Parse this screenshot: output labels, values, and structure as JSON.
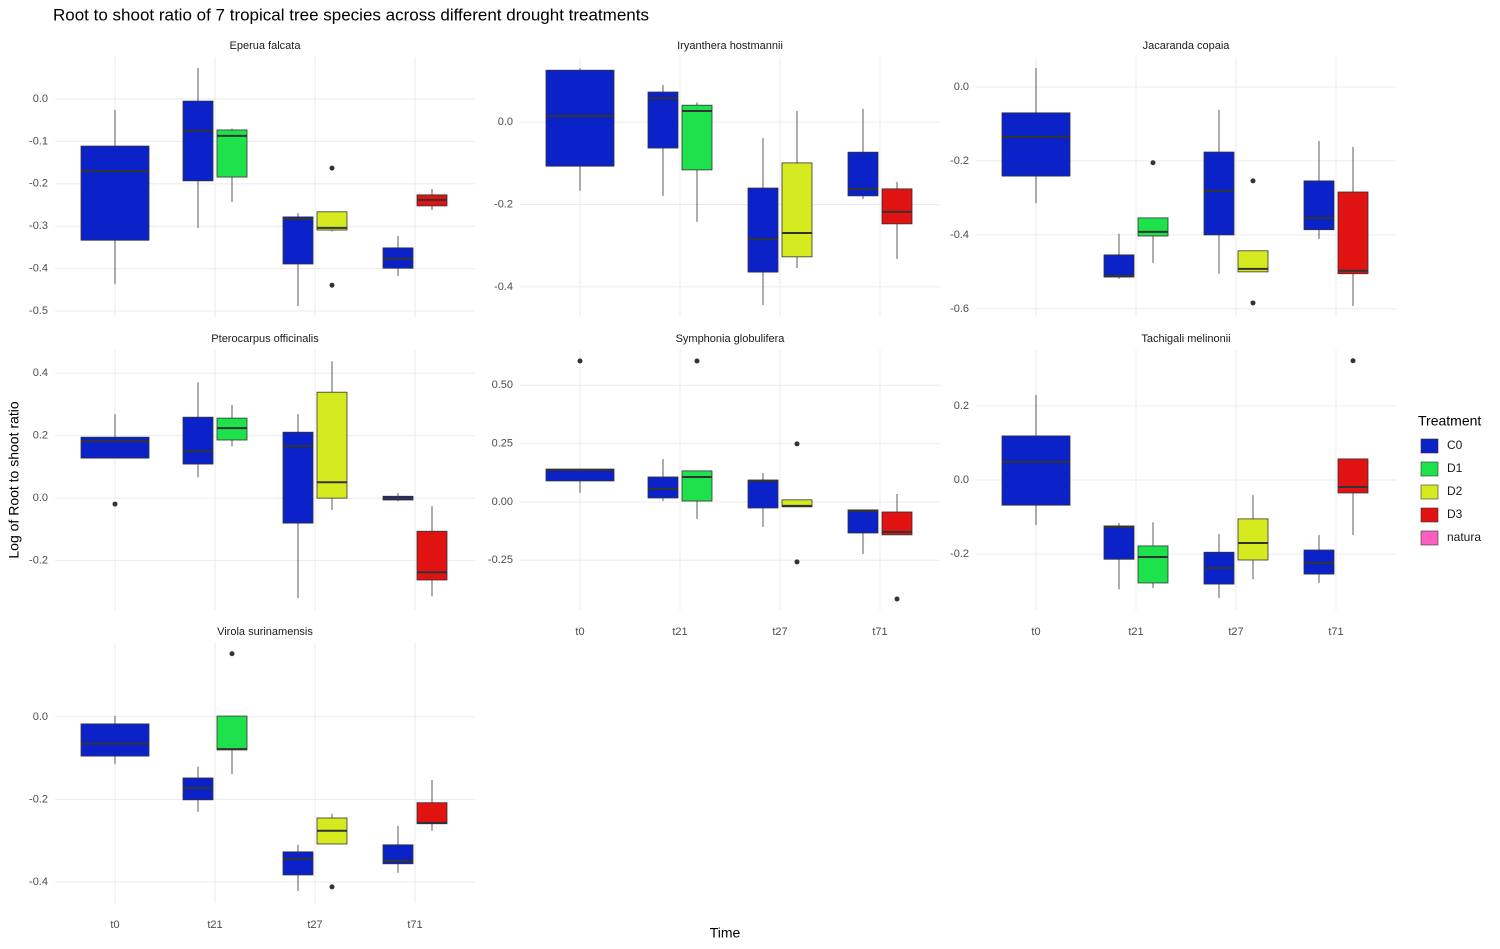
{
  "chart_data": {
    "type": "boxplot",
    "title": "Root to shoot ratio of 7 tropical tree species across different drought treatments",
    "xlabel": "Time",
    "ylabel": "Log of Root to shoot ratio",
    "legend_title": "Treatment",
    "legend_position": "right",
    "grid": true,
    "categories": [
      "t0",
      "t21",
      "t27",
      "t71"
    ],
    "series": [
      {
        "name": "C0",
        "color": "#0c22c9"
      },
      {
        "name": "D1",
        "color": "#1ee24c"
      },
      {
        "name": "D2",
        "color": "#d6eb1f"
      },
      {
        "name": "D3",
        "color": "#e01212"
      },
      {
        "name": "natura",
        "color": "#fb5fbf"
      }
    ],
    "facets": [
      {
        "title": "Eperua falcata",
        "ylim": [
          -0.514,
          0.099
        ],
        "yticks": [
          {
            "value": 0,
            "label": "0.0"
          },
          -0.1,
          -0.2,
          -0.3,
          -0.4,
          -0.5
        ],
        "boxes": [
          [
            {
              "low": -0.436,
              "q1": -0.333,
              "median": -0.17,
              "q3": -0.111,
              "high": -0.026
            },
            null,
            null,
            null,
            null
          ],
          [
            {
              "low": -0.304,
              "q1": -0.193,
              "median": -0.075,
              "q3": -0.005,
              "high": 0.073
            },
            {
              "low": -0.243,
              "q1": -0.184,
              "median": -0.087,
              "q3": -0.073,
              "high": -0.07
            },
            null,
            null,
            null
          ],
          [
            {
              "low": -0.488,
              "q1": -0.389,
              "median": -0.283,
              "q3": -0.278,
              "high": -0.269
            },
            null,
            {
              "low": -0.312,
              "q1": -0.309,
              "median": -0.304,
              "q3": -0.266,
              "high": -0.266,
              "outliers": [
                -0.163,
                -0.439
              ]
            },
            null,
            null
          ],
          [
            {
              "low": -0.417,
              "q1": -0.399,
              "median": -0.377,
              "q3": -0.351,
              "high": -0.323
            },
            null,
            null,
            {
              "low": -0.262,
              "q1": -0.252,
              "median": -0.238,
              "q3": -0.226,
              "high": -0.212
            },
            null
          ]
        ]
      },
      {
        "title": "Iryanthera hostmannii",
        "ylim": [
          -0.473,
          0.158
        ],
        "yticks": [
          {
            "value": 0,
            "label": "0.0"
          },
          -0.2,
          -0.4
        ],
        "boxes": [
          [
            {
              "low": -0.167,
              "q1": -0.107,
              "median": 0.015,
              "q3": 0.126,
              "high": 0.131
            },
            null,
            null,
            null,
            null
          ],
          [
            {
              "low": -0.179,
              "q1": -0.063,
              "median": 0.058,
              "q3": 0.073,
              "high": 0.09
            },
            {
              "low": -0.242,
              "q1": -0.116,
              "median": 0.027,
              "q3": 0.041,
              "high": 0.048
            },
            null,
            null,
            null
          ],
          [
            {
              "low": -0.444,
              "q1": -0.364,
              "median": -0.284,
              "q3": -0.16,
              "high": -0.039
            },
            null,
            {
              "low": -0.354,
              "q1": -0.327,
              "median": -0.269,
              "q3": -0.099,
              "high": 0.027
            },
            null,
            null
          ],
          [
            {
              "low": -0.187,
              "q1": -0.179,
              "median": -0.162,
              "q3": -0.073,
              "high": 0.032
            },
            null,
            null,
            {
              "low": -0.332,
              "q1": -0.247,
              "median": -0.218,
              "q3": -0.162,
              "high": -0.145
            },
            null
          ]
        ]
      },
      {
        "title": "Jacaranda copaia",
        "ylim": [
          -0.622,
          0.081
        ],
        "yticks": [
          {
            "value": 0,
            "label": "0.0"
          },
          -0.2,
          -0.4,
          -0.6
        ],
        "boxes": [
          [
            {
              "low": -0.314,
              "q1": -0.241,
              "median": -0.135,
              "q3": -0.07,
              "high": 0.051
            },
            null,
            null,
            null,
            null
          ],
          [
            {
              "low": -0.519,
              "q1": -0.514,
              "median": -0.511,
              "q3": -0.454,
              "high": -0.397
            },
            {
              "low": -0.476,
              "q1": -0.403,
              "median": -0.392,
              "q3": -0.354,
              "high": -0.354,
              "outliers": [
                -0.205
              ]
            },
            null,
            null,
            null
          ],
          [
            {
              "low": -0.505,
              "q1": -0.4,
              "median": -0.281,
              "q3": -0.176,
              "high": -0.062
            },
            null,
            {
              "low": -0.5,
              "q1": -0.5,
              "median": -0.492,
              "q3": -0.443,
              "high": -0.443,
              "outliers": [
                -0.254,
                -0.584
              ]
            },
            null,
            null
          ],
          [
            {
              "low": -0.411,
              "q1": -0.386,
              "median": -0.354,
              "q3": -0.254,
              "high": -0.146
            },
            null,
            null,
            {
              "low": -0.592,
              "q1": -0.505,
              "median": -0.497,
              "q3": -0.284,
              "high": -0.162
            },
            null
          ]
        ]
      },
      {
        "title": "Pterocarpus officinalis",
        "ylim": [
          -0.358,
          0.474
        ],
        "yticks": [
          0.4,
          0.2,
          {
            "value": 0,
            "label": "0.0"
          },
          -0.2
        ],
        "boxes": [
          [
            {
              "low": 0.128,
              "q1": 0.128,
              "median": 0.182,
              "q3": 0.195,
              "high": 0.269,
              "outliers": [
                -0.019
              ]
            },
            null,
            null,
            null,
            null
          ],
          [
            {
              "low": 0.067,
              "q1": 0.109,
              "median": 0.15,
              "q3": 0.259,
              "high": 0.371
            },
            {
              "low": 0.166,
              "q1": 0.186,
              "median": 0.224,
              "q3": 0.256,
              "high": 0.298
            },
            null,
            null,
            null
          ],
          [
            {
              "low": -0.32,
              "q1": -0.08,
              "median": 0.166,
              "q3": 0.211,
              "high": 0.269
            },
            null,
            {
              "low": -0.038,
              "q1": 0.0,
              "median": 0.051,
              "q3": 0.339,
              "high": 0.438
            },
            null,
            null
          ],
          [
            {
              "low": -0.01,
              "q1": -0.006,
              "median": 0.0,
              "q3": 0.006,
              "high": 0.016
            },
            null,
            null,
            {
              "low": -0.314,
              "q1": -0.262,
              "median": -0.237,
              "q3": -0.106,
              "high": -0.026
            },
            null
          ]
        ]
      },
      {
        "title": "Symphonia globulifera",
        "ylim": [
          -0.463,
          0.651
        ],
        "yticks": [
          {
            "value": 0.5,
            "label": "0.50"
          },
          0.25,
          {
            "value": 0,
            "label": "0.00"
          },
          -0.25
        ],
        "boxes": [
          [
            {
              "low": 0.039,
              "q1": 0.09,
              "median": 0.137,
              "q3": 0.141,
              "high": 0.141,
              "outliers": [
                0.604
              ]
            },
            null,
            null,
            null,
            null
          ],
          [
            {
              "low": 0.004,
              "q1": 0.017,
              "median": 0.056,
              "q3": 0.107,
              "high": 0.184
            },
            {
              "low": -0.073,
              "q1": 0.004,
              "median": 0.107,
              "q3": 0.133,
              "high": 0.133,
              "outliers": [
                0.604
              ]
            },
            null,
            null,
            null
          ],
          [
            {
              "low": -0.107,
              "q1": -0.026,
              "median": 0.09,
              "q3": 0.094,
              "high": 0.124
            },
            null,
            {
              "low": -0.021,
              "q1": -0.021,
              "median": -0.017,
              "q3": 0.009,
              "high": 0.009,
              "outliers": [
                0.249,
                -0.257
              ]
            },
            null,
            null
          ],
          [
            {
              "low": -0.223,
              "q1": -0.133,
              "median": -0.039,
              "q3": -0.034,
              "high": -0.034
            },
            null,
            null,
            {
              "low": -0.141,
              "q1": -0.141,
              "median": -0.129,
              "q3": -0.043,
              "high": 0.034,
              "outliers": [
                -0.416
              ]
            },
            null
          ]
        ]
      },
      {
        "title": "Tachigali melinonii",
        "ylim": [
          -0.351,
          0.351
        ],
        "yticks": [
          0.2,
          {
            "value": 0,
            "label": "0.0"
          },
          -0.2
        ],
        "boxes": [
          [
            {
              "low": -0.122,
              "q1": -0.068,
              "median": 0.049,
              "q3": 0.119,
              "high": 0.23
            },
            null,
            null,
            null,
            null
          ],
          [
            {
              "low": -0.295,
              "q1": -0.214,
              "median": -0.127,
              "q3": -0.124,
              "high": -0.116
            },
            {
              "low": -0.292,
              "q1": -0.278,
              "median": -0.208,
              "q3": -0.178,
              "high": -0.114
            },
            null,
            null,
            null
          ],
          [
            {
              "low": -0.319,
              "q1": -0.281,
              "median": -0.238,
              "q3": -0.195,
              "high": -0.146
            },
            null,
            {
              "low": -0.268,
              "q1": -0.216,
              "median": -0.17,
              "q3": -0.105,
              "high": -0.041
            },
            null,
            null
          ],
          [
            {
              "low": -0.278,
              "q1": -0.254,
              "median": -0.224,
              "q3": -0.189,
              "high": -0.149
            },
            null,
            null,
            {
              "low": -0.149,
              "q1": -0.035,
              "median": -0.019,
              "q3": 0.057,
              "high": 0.057,
              "outliers": [
                0.322
              ]
            },
            null
          ]
        ]
      },
      {
        "title": "Virola surinamensis",
        "ylim": [
          -0.451,
          0.179
        ],
        "yticks": [
          {
            "value": 0,
            "label": "0.0"
          },
          -0.2,
          -0.4
        ],
        "boxes": [
          [
            {
              "low": -0.114,
              "q1": -0.095,
              "median": -0.065,
              "q3": -0.017,
              "high": 0.002
            },
            null,
            null,
            null,
            null
          ],
          [
            {
              "low": -0.23,
              "q1": -0.201,
              "median": -0.172,
              "q3": -0.148,
              "high": -0.121
            },
            {
              "low": -0.138,
              "q1": -0.08,
              "median": -0.078,
              "q3": 0.002,
              "high": 0.002,
              "outliers": [
                0.153
              ]
            },
            null,
            null,
            null
          ],
          [
            {
              "low": -0.422,
              "q1": -0.383,
              "median": -0.344,
              "q3": -0.327,
              "high": -0.31
            },
            null,
            {
              "low": -0.308,
              "q1": -0.308,
              "median": -0.276,
              "q3": -0.245,
              "high": -0.235,
              "outliers": [
                -0.412
              ]
            },
            null,
            null
          ],
          [
            {
              "low": -0.378,
              "q1": -0.356,
              "median": -0.349,
              "q3": -0.31,
              "high": -0.264
            },
            null,
            null,
            {
              "low": -0.276,
              "q1": -0.259,
              "median": -0.257,
              "q3": -0.208,
              "high": -0.153
            },
            null
          ]
        ]
      }
    ]
  }
}
